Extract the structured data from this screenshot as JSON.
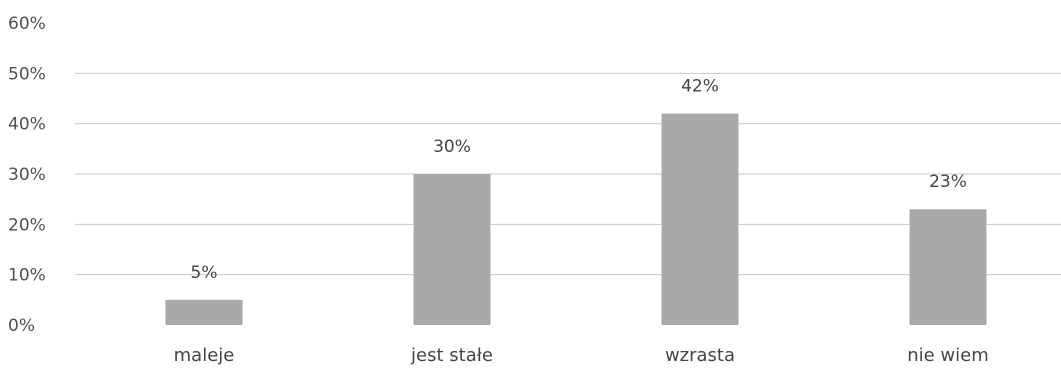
{
  "chart_data": {
    "type": "bar",
    "categories": [
      "maleje",
      "jest stałe",
      "wzrasta",
      "nie wiem"
    ],
    "values": [
      5,
      30,
      42,
      23
    ],
    "data_labels": [
      "5%",
      "30%",
      "42%",
      "23%"
    ],
    "ylim": [
      0,
      60
    ],
    "yticks": [
      0,
      10,
      20,
      30,
      40,
      50,
      60
    ],
    "ytick_labels": [
      "0%",
      "10%",
      "20%",
      "30%",
      "40%",
      "50%",
      "60%"
    ],
    "grid": true,
    "legend": "none",
    "colors": {
      "bar": "#a9a9a9",
      "grid": "#c8c8c8",
      "text": "#454545"
    }
  }
}
